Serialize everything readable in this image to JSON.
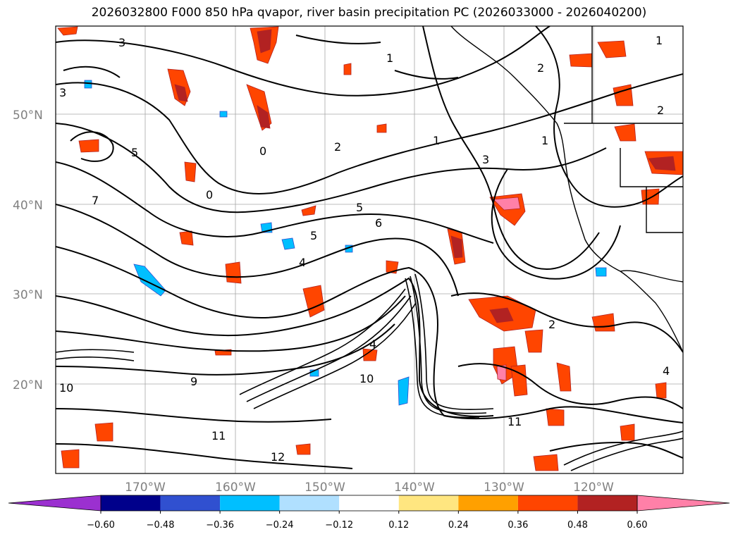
{
  "title": "2026032800 F000 850 hPa qvapor, river basin precipitation PC (2026033000 - 2026040200)",
  "lat_labels": [
    "50°N",
    "40°N",
    "30°N",
    "20°N"
  ],
  "lon_labels": [
    "170°W",
    "160°W",
    "150°W",
    "140°W",
    "130°W",
    "120°W"
  ],
  "colorbar": {
    "ticks": [
      "−0.60",
      "−0.48",
      "−0.36",
      "−0.24",
      "−0.12",
      "0.12",
      "0.24",
      "0.36",
      "0.48",
      "0.60"
    ],
    "colors": [
      "#9b30d0",
      "#00008b",
      "#3050d0",
      "#00bfff",
      "#b0e0ff",
      "#ffffff",
      "#ffe680",
      "#ffa000",
      "#ff4500",
      "#b22222",
      "#ff80a8"
    ],
    "under_color": "#9b30d0",
    "over_color": "#ff80a8"
  },
  "contour_labels": [
    "1",
    "2",
    "3",
    "4",
    "5",
    "6",
    "7",
    "9",
    "10",
    "11",
    "12",
    "0"
  ],
  "colors": {
    "frame": "#000000",
    "grid": "#808080",
    "axis_label": "#808080"
  }
}
